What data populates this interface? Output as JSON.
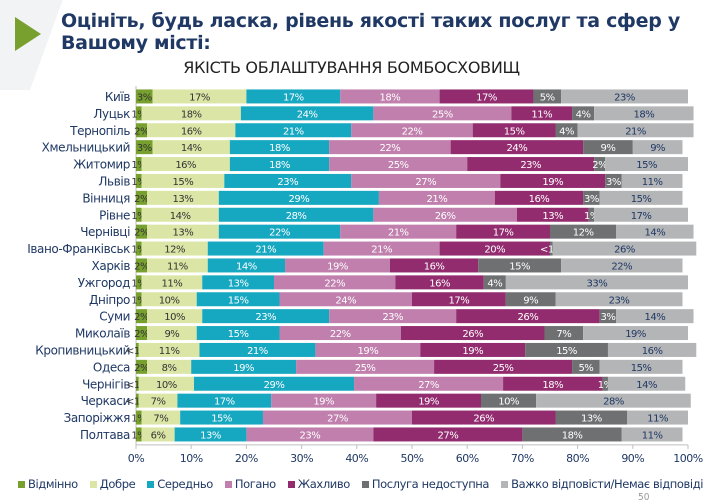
{
  "header": {
    "title": "Оцініть, будь ласка, рівень якості таких послуг та сфер у Вашому місті:",
    "subtitle": "ЯКІСТЬ ОБЛАШТУВАННЯ  БОМБОСХОВИЩ"
  },
  "page_number": "50",
  "chart_data": {
    "type": "bar",
    "orientation": "horizontal",
    "stacked": true,
    "percent": true,
    "title": "ЯКІСТЬ ОБЛАШТУВАННЯ  БОМБОСХОВИЩ",
    "xlim": [
      0,
      100
    ],
    "x_ticks": [
      "0%",
      "10%",
      "20%",
      "30%",
      "40%",
      "50%",
      "60%",
      "70%",
      "80%",
      "90%",
      "100%"
    ],
    "legend_position": "bottom",
    "categories": [
      "Київ",
      "Луцьк",
      "Тернопіль",
      "Хмельницький",
      "Житомир",
      "Львів",
      "Вінниця",
      "Рівне",
      "Чернівці",
      "Івано-Франківськ",
      "Харків",
      "Ужгород",
      "Дніпро",
      "Суми",
      "Миколаїв",
      "Кропивницький",
      "Одеса",
      "Чернігів",
      "Черкаси",
      "Запоріжжя",
      "Полтава"
    ],
    "series": [
      {
        "name": "Відмінно",
        "color": "#77a02f",
        "text_color": "#333333",
        "values": [
          3,
          1,
          2,
          3,
          1,
          1,
          2,
          1,
          2,
          1,
          2,
          1,
          1,
          2,
          2,
          0.5,
          2,
          0.5,
          0.5,
          1,
          1
        ],
        "labels": [
          "3%",
          "1%",
          "2%",
          "3%",
          "1%",
          "1%",
          "2%",
          "1%",
          "2%",
          "1%",
          "2%",
          "1%",
          "1%",
          "2%",
          "2%",
          "<1%",
          "2%",
          "<1%",
          "<1%",
          "1%",
          "1%"
        ]
      },
      {
        "name": "Добре",
        "color": "#dbe6a6",
        "text_color": "#333333",
        "values": [
          17,
          18,
          16,
          14,
          16,
          15,
          13,
          14,
          13,
          12,
          11,
          11,
          10,
          10,
          9,
          11,
          8,
          10,
          7,
          7,
          6
        ],
        "labels": [
          "17%",
          "18%",
          "16%",
          "14%",
          "16%",
          "15%",
          "13%",
          "14%",
          "13%",
          "12%",
          "11%",
          "11%",
          "10%",
          "10%",
          "9%",
          "11%",
          "8%",
          "10%",
          "7%",
          "7%",
          "6%"
        ]
      },
      {
        "name": "Середньо",
        "color": "#16a7c1",
        "text_color": "#ffffff",
        "values": [
          17,
          24,
          21,
          18,
          18,
          23,
          29,
          28,
          22,
          21,
          14,
          13,
          15,
          23,
          15,
          21,
          19,
          29,
          17,
          15,
          13
        ],
        "labels": [
          "17%",
          "24%",
          "21%",
          "18%",
          "18%",
          "23%",
          "29%",
          "28%",
          "22%",
          "21%",
          "14%",
          "13%",
          "15%",
          "23%",
          "15%",
          "21%",
          "19%",
          "29%",
          "17%",
          "15%",
          "13%"
        ]
      },
      {
        "name": "Погано",
        "color": "#c07fad",
        "text_color": "#ffffff",
        "values": [
          18,
          25,
          22,
          22,
          25,
          27,
          21,
          26,
          21,
          21,
          19,
          22,
          24,
          23,
          22,
          19,
          25,
          27,
          19,
          27,
          23
        ],
        "labels": [
          "18%",
          "25%",
          "22%",
          "22%",
          "25%",
          "27%",
          "21%",
          "26%",
          "21%",
          "21%",
          "19%",
          "22%",
          "24%",
          "23%",
          "22%",
          "19%",
          "25%",
          "27%",
          "19%",
          "27%",
          "23%"
        ]
      },
      {
        "name": "Жахливо",
        "color": "#922c6f",
        "text_color": "#ffffff",
        "values": [
          17,
          11,
          15,
          24,
          23,
          19,
          16,
          13,
          17,
          20,
          16,
          16,
          17,
          26,
          26,
          19,
          25,
          18,
          19,
          26,
          27
        ],
        "labels": [
          "17%",
          "11%",
          "15%",
          "24%",
          "23%",
          "19%",
          "16%",
          "13%",
          "17%",
          "20%",
          "16%",
          "16%",
          "17%",
          "26%",
          "26%",
          "19%",
          "25%",
          "18%",
          "19%",
          "26%",
          "27%"
        ]
      },
      {
        "name": "Послуга недоступна",
        "color": "#6f7072",
        "text_color": "#ffffff",
        "values": [
          5,
          4,
          4,
          9,
          2,
          3,
          3,
          1,
          12,
          0.5,
          15,
          4,
          9,
          3,
          7,
          15,
          5,
          1,
          10,
          13,
          18
        ],
        "labels": [
          "5%",
          "4%",
          "4%",
          "9%",
          "2%",
          "3%",
          "3%",
          "1%",
          "12%",
          "<1%",
          "15%",
          "4%",
          "9%",
          "3%",
          "7%",
          "15%",
          "5%",
          "1%",
          "10%",
          "13%",
          "18%"
        ]
      },
      {
        "name": "Важко відповісти/Немає відповіді",
        "color": "#b4b5b7",
        "text_color": "#1f3864",
        "values": [
          23,
          18,
          21,
          9,
          15,
          11,
          15,
          17,
          14,
          26,
          22,
          33,
          23,
          14,
          19,
          16,
          15,
          14,
          28,
          11,
          11
        ],
        "labels": [
          "23%",
          "18%",
          "21%",
          "9%",
          "15%",
          "11%",
          "15%",
          "17%",
          "14%",
          "26%",
          "22%",
          "33%",
          "23%",
          "14%",
          "19%",
          "16%",
          "15%",
          "14%",
          "28%",
          "11%",
          "11%"
        ]
      }
    ]
  }
}
